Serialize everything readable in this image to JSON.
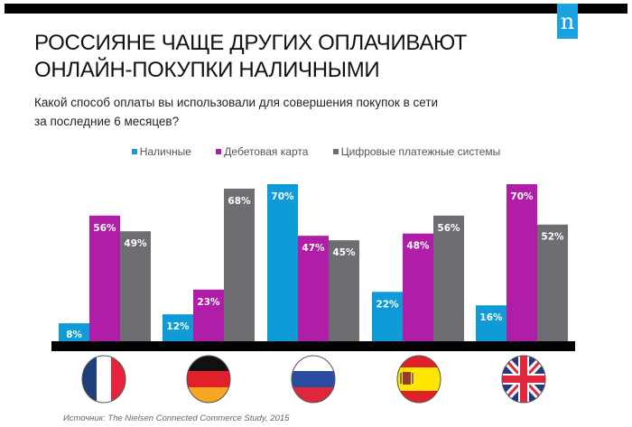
{
  "header": {
    "logo_letter": "n",
    "title_lines": [
      "РОССИЯНЕ ЧАЩЕ ДРУГИХ ОПЛАЧИВАЮТ",
      "ОНЛАЙН-ПОКУПКИ НАЛИЧНЫМИ"
    ],
    "subtitle_lines": [
      "Какой способ оплаты вы использовали для совершения покупок в сети",
      "за последние 6 месяцев?"
    ]
  },
  "footer": {
    "source": "Источник: The Nielsen Connected Commerce Study, 2015"
  },
  "chart_data": {
    "type": "bar",
    "title": "РОССИЯНЕ ЧАЩЕ ДРУГИХ ОПЛАЧИВАЮТ ОНЛАЙН-ПОКУПКИ НАЛИЧНЫМИ",
    "subtitle": "Какой способ оплаты вы использовали для совершения покупок в сети за последние 6 месяцев?",
    "xlabel": "",
    "ylabel": "",
    "ylim": [
      0,
      70
    ],
    "grid": false,
    "legend_position": "top-center",
    "categories": [
      "France",
      "Germany",
      "Russia",
      "Spain",
      "United Kingdom"
    ],
    "category_icons": [
      "flag-france",
      "flag-germany",
      "flag-russia",
      "flag-spain",
      "flag-uk"
    ],
    "series": [
      {
        "name": "Наличные",
        "color": "#0f9bd7",
        "values": [
          8,
          12,
          70,
          22,
          16
        ]
      },
      {
        "name": "Дебетовая карта",
        "color": "#b01ea8",
        "values": [
          56,
          23,
          47,
          48,
          70
        ]
      },
      {
        "name": "Цифровые платежные системы",
        "color": "#6d6e71",
        "values": [
          49,
          68,
          45,
          56,
          52
        ]
      }
    ],
    "value_suffix": "%"
  }
}
